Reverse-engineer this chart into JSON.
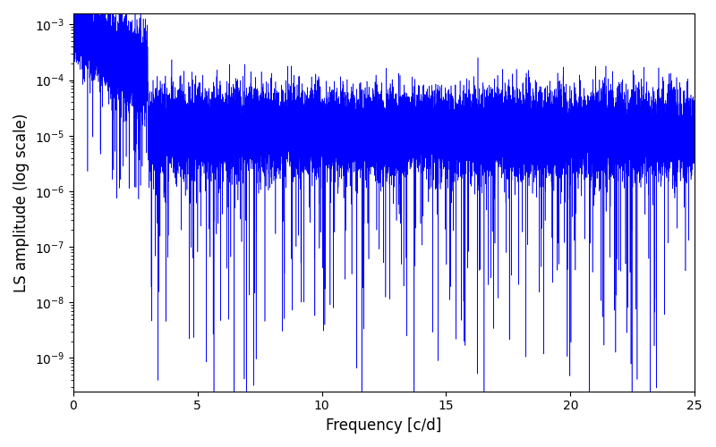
{
  "line_color": "#0000ff",
  "xlabel": "Frequency [c/d]",
  "ylabel": "LS amplitude (log scale)",
  "xlim": [
    0,
    25
  ],
  "ylim_log": [
    -9.6,
    -2.8
  ],
  "xticks": [
    0,
    5,
    10,
    15,
    20,
    25
  ],
  "line_width": 0.4,
  "n_points": 25000,
  "freq_max": 25.0,
  "seed": 7,
  "background_color": "#ffffff",
  "figsize": [
    8.0,
    5.0
  ],
  "dpi": 100
}
